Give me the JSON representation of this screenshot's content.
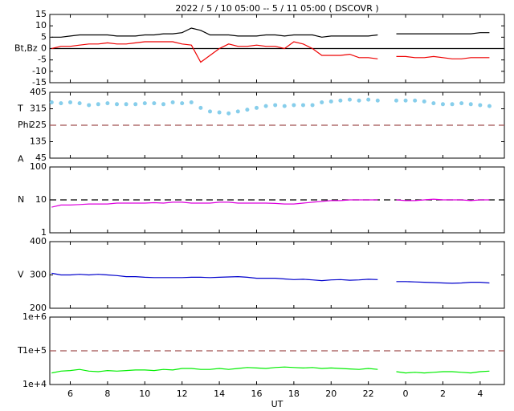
{
  "chart_data": [
    {
      "type": "line",
      "title": "2022 /  5 / 10   05:00 --  5 / 11   05:00 ( DSCOVR )",
      "ylabels": [
        "Bt,Bz"
      ],
      "x": [
        5,
        5.5,
        6,
        6.5,
        7,
        7.5,
        8,
        8.5,
        9,
        9.5,
        10,
        10.5,
        11,
        11.5,
        12,
        12.5,
        13,
        13.5,
        14,
        14.5,
        15,
        15.5,
        16,
        16.5,
        17,
        17.5,
        18,
        18.5,
        19,
        19.5,
        20,
        20.5,
        21,
        21.5,
        22,
        22.5,
        23,
        23.5,
        24,
        24.5,
        25,
        25.5,
        26,
        26.5,
        27,
        27.5,
        28,
        28.5
      ],
      "xlim": [
        4.9,
        29.3
      ],
      "ylim": [
        -15,
        15
      ],
      "yticks": [
        15,
        10,
        5,
        0,
        -5,
        -10,
        -15
      ],
      "reference_line": {
        "value": 0,
        "style": "solid",
        "color": "#000000"
      },
      "series": [
        {
          "name": "Bt",
          "color": "#000000",
          "values": [
            5,
            5,
            5.5,
            6,
            6,
            6,
            6,
            5.5,
            5.5,
            5.5,
            6,
            6,
            6.5,
            6.5,
            7,
            9,
            8,
            6,
            6,
            6,
            5.5,
            5.5,
            5.5,
            6,
            6,
            5.5,
            6,
            6,
            6,
            5,
            5.5,
            5.5,
            5.5,
            5.5,
            5.5,
            6,
            null,
            6.5,
            6.5,
            6.5,
            6.5,
            6.5,
            6.5,
            6.5,
            6.5,
            6.5,
            7,
            7
          ]
        },
        {
          "name": "Bz",
          "color": "#ee0000",
          "values": [
            0,
            1,
            1,
            1.5,
            2,
            2,
            2.5,
            2,
            2,
            2.5,
            3,
            3,
            3,
            3,
            2,
            1.5,
            -6,
            -3,
            0,
            2,
            1,
            1,
            1.5,
            1,
            1,
            0,
            3,
            2,
            0,
            -3,
            -3,
            -3,
            -2.5,
            -4,
            -4,
            -4.5,
            null,
            -3.5,
            -3.5,
            -4,
            -4,
            -3.5,
            -4,
            -4.5,
            -4.5,
            -4,
            -4,
            -4
          ]
        }
      ]
    },
    {
      "type": "scatter",
      "ylabels": [
        "T",
        "Phi",
        "A"
      ],
      "x": [
        5,
        5.5,
        6,
        6.5,
        7,
        7.5,
        8,
        8.5,
        9,
        9.5,
        10,
        10.5,
        11,
        11.5,
        12,
        12.5,
        13,
        13.5,
        14,
        14.5,
        15,
        15.5,
        16,
        16.5,
        17,
        17.5,
        18,
        18.5,
        19,
        19.5,
        20,
        20.5,
        21,
        21.5,
        22,
        22.5,
        23,
        23.5,
        24,
        24.5,
        25,
        25.5,
        26,
        26.5,
        27,
        27.5,
        28,
        28.5
      ],
      "xlim": [
        4.9,
        29.3
      ],
      "ylim": [
        45,
        405
      ],
      "yticks": [
        405,
        315,
        225,
        135,
        45
      ],
      "reference_line": {
        "value": 225,
        "style": "dashed",
        "color": "#a05050"
      },
      "series": [
        {
          "name": "Phi",
          "color": "#87ceeb",
          "values": [
            350,
            345,
            350,
            345,
            335,
            340,
            345,
            340,
            340,
            340,
            345,
            345,
            340,
            350,
            345,
            350,
            320,
            300,
            295,
            290,
            300,
            310,
            320,
            330,
            335,
            330,
            335,
            335,
            335,
            350,
            355,
            360,
            365,
            360,
            365,
            360,
            null,
            360,
            360,
            360,
            355,
            345,
            340,
            340,
            345,
            340,
            335,
            330
          ]
        }
      ]
    },
    {
      "type": "line",
      "ylabels": [
        "N"
      ],
      "log_scale": true,
      "x": [
        5,
        5.5,
        6,
        6.5,
        7,
        7.5,
        8,
        8.5,
        9,
        9.5,
        10,
        10.5,
        11,
        11.5,
        12,
        12.5,
        13,
        13.5,
        14,
        14.5,
        15,
        15.5,
        16,
        16.5,
        17,
        17.5,
        18,
        18.5,
        19,
        19.5,
        20,
        20.5,
        21,
        21.5,
        22,
        22.5,
        23,
        23.5,
        24,
        24.5,
        25,
        25.5,
        26,
        26.5,
        27,
        27.5,
        28,
        28.5
      ],
      "xlim": [
        4.9,
        29.3
      ],
      "ylim": [
        1,
        100
      ],
      "yticks": [
        100,
        10,
        1
      ],
      "reference_line": {
        "value": 10,
        "style": "dashed",
        "color": "#000000"
      },
      "series": [
        {
          "name": "N",
          "color": "#dd00dd",
          "values": [
            6,
            7,
            7,
            7.2,
            7.5,
            7.5,
            7.5,
            8,
            8,
            8,
            8,
            8.2,
            8,
            8.5,
            8.5,
            8,
            8,
            8,
            8.5,
            8.5,
            8,
            8,
            8,
            8,
            7.8,
            7.5,
            7.5,
            8,
            8.5,
            9,
            9.5,
            9.5,
            10,
            10,
            10,
            10,
            null,
            10,
            9.5,
            9.5,
            10,
            10.5,
            10,
            10,
            10,
            9.5,
            10,
            10
          ]
        }
      ]
    },
    {
      "type": "line",
      "ylabels": [
        "V"
      ],
      "x": [
        5,
        5.5,
        6,
        6.5,
        7,
        7.5,
        8,
        8.5,
        9,
        9.5,
        10,
        10.5,
        11,
        11.5,
        12,
        12.5,
        13,
        13.5,
        14,
        14.5,
        15,
        15.5,
        16,
        16.5,
        17,
        17.5,
        18,
        18.5,
        19,
        19.5,
        20,
        20.5,
        21,
        21.5,
        22,
        22.5,
        23,
        23.5,
        24,
        24.5,
        25,
        25.5,
        26,
        26.5,
        27,
        27.5,
        28,
        28.5
      ],
      "xlim": [
        4.9,
        29.3
      ],
      "ylim": [
        200,
        400
      ],
      "yticks": [
        400,
        300,
        200
      ],
      "series": [
        {
          "name": "V",
          "color": "#0000cc",
          "values": [
            305,
            300,
            300,
            302,
            300,
            302,
            300,
            298,
            295,
            295,
            293,
            292,
            292,
            292,
            292,
            293,
            293,
            292,
            293,
            294,
            295,
            293,
            290,
            290,
            290,
            288,
            286,
            287,
            285,
            283,
            285,
            286,
            284,
            285,
            287,
            286,
            null,
            280,
            280,
            279,
            278,
            277,
            276,
            275,
            276,
            278,
            278,
            276
          ]
        }
      ]
    },
    {
      "type": "line",
      "ylabels": [
        "T"
      ],
      "log_scale": true,
      "xlabel": "UT",
      "x": [
        5,
        5.5,
        6,
        6.5,
        7,
        7.5,
        8,
        8.5,
        9,
        9.5,
        10,
        10.5,
        11,
        11.5,
        12,
        12.5,
        13,
        13.5,
        14,
        14.5,
        15,
        15.5,
        16,
        16.5,
        17,
        17.5,
        18,
        18.5,
        19,
        19.5,
        20,
        20.5,
        21,
        21.5,
        22,
        22.5,
        23,
        23.5,
        24,
        24.5,
        25,
        25.5,
        26,
        26.5,
        27,
        27.5,
        28,
        28.5
      ],
      "xlim": [
        4.9,
        29.3
      ],
      "xticks": [
        6,
        8,
        10,
        12,
        14,
        16,
        18,
        20,
        22,
        {
          "value": 24,
          "label": "0"
        },
        {
          "value": 26,
          "label": "2"
        },
        {
          "value": 28,
          "label": "4"
        }
      ],
      "ylim": [
        10000,
        1000000
      ],
      "yticks": [
        {
          "value": 1000000,
          "label": "1e+6"
        },
        {
          "value": 100000,
          "label": "1e+5"
        },
        {
          "value": 10000,
          "label": "1e+4"
        }
      ],
      "reference_line": {
        "value": 100000,
        "style": "dashed",
        "color": "#a05050"
      },
      "series": [
        {
          "name": "T",
          "color": "#00ee00",
          "values": [
            22000,
            25000,
            26000,
            28000,
            25000,
            24000,
            26000,
            25000,
            26000,
            27000,
            27000,
            26000,
            28000,
            27000,
            30000,
            30000,
            28000,
            28000,
            30000,
            28000,
            30000,
            32000,
            31000,
            30000,
            32000,
            33000,
            32000,
            31000,
            32000,
            30000,
            31000,
            30000,
            29000,
            28000,
            30000,
            28000,
            null,
            24000,
            22000,
            23000,
            22000,
            23000,
            24000,
            24000,
            23000,
            22000,
            24000,
            25000
          ]
        }
      ]
    }
  ]
}
